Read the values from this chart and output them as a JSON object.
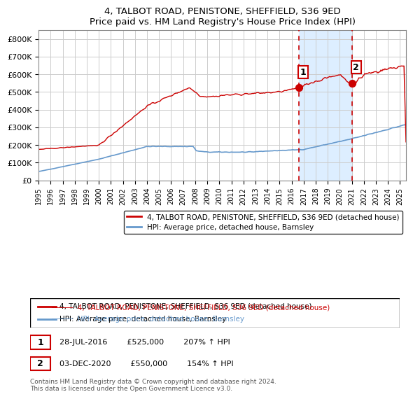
{
  "title": "4, TALBOT ROAD, PENISTONE, SHEFFIELD, S36 9ED",
  "subtitle": "Price paid vs. HM Land Registry's House Price Index (HPI)",
  "legend_line1": "4, TALBOT ROAD, PENISTONE, SHEFFIELD, S36 9ED (detached house)",
  "legend_line2": "HPI: Average price, detached house, Barnsley",
  "annotation1_label": "1",
  "annotation1_date": "28-JUL-2016",
  "annotation1_price": 525000,
  "annotation1_text": "28-JUL-2016        £525,000        207% ↑ HPI",
  "annotation2_label": "2",
  "annotation2_date": "03-DEC-2020",
  "annotation2_price": 550000,
  "annotation2_text": "03-DEC-2020        £550,000        154% ↑ HPI",
  "footer": "Contains HM Land Registry data © Crown copyright and database right 2024.\nThis data is licensed under the Open Government Licence v3.0.",
  "red_color": "#cc0000",
  "blue_color": "#6699cc",
  "shade_color": "#ddeeff",
  "grid_color": "#cccccc",
  "ylim": [
    0,
    850000
  ],
  "yticks": [
    0,
    100000,
    200000,
    300000,
    400000,
    500000,
    600000,
    700000,
    800000
  ],
  "ytick_labels": [
    "£0",
    "£100K",
    "£200K",
    "£300K",
    "£400K",
    "£500K",
    "£600K",
    "£700K",
    "£800K"
  ]
}
